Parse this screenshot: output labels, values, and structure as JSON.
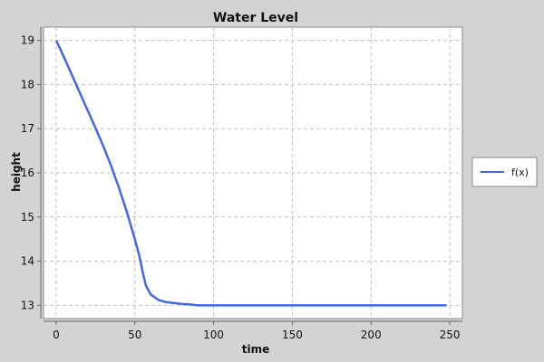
{
  "chart_data": {
    "type": "line",
    "title": "Water Level",
    "xlabel": "time",
    "ylabel": "height",
    "xlim": [
      -8,
      258
    ],
    "ylim": [
      12.7,
      19.3
    ],
    "x_ticks": [
      0,
      50,
      100,
      150,
      200,
      250
    ],
    "y_ticks": [
      13,
      14,
      15,
      16,
      17,
      18,
      19
    ],
    "grid": true,
    "legend_position": "right",
    "colors": {
      "line": "#4169e1",
      "background": "#d3d3d3",
      "plot_bg": "#ffffff",
      "grid": "#c0c0c0"
    },
    "series": [
      {
        "name": "f(x)",
        "x": [
          0,
          2,
          5,
          10,
          15,
          20,
          25,
          30,
          35,
          40,
          45,
          50,
          53,
          55,
          57,
          60,
          65,
          70,
          75,
          80,
          85,
          90,
          100,
          120,
          150,
          180,
          200,
          220,
          248
        ],
        "y": [
          19.0,
          18.85,
          18.62,
          18.22,
          17.82,
          17.42,
          17.02,
          16.6,
          16.15,
          15.65,
          15.1,
          14.5,
          14.1,
          13.75,
          13.45,
          13.25,
          13.12,
          13.07,
          13.05,
          13.03,
          13.02,
          13.0,
          13.0,
          13.0,
          13.0,
          13.0,
          13.0,
          13.0,
          13.0
        ]
      }
    ]
  }
}
